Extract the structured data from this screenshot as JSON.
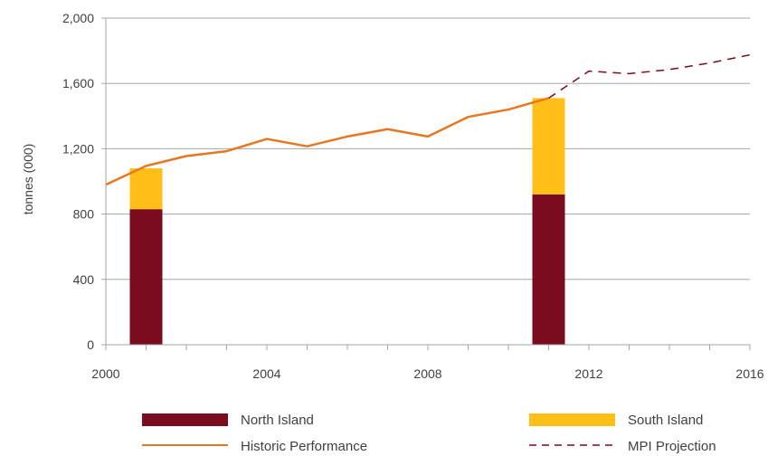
{
  "chart_data": {
    "type": "bar",
    "ylabel": "tonnes (000)",
    "xlabel": "",
    "title": "",
    "ylim": [
      0,
      2000
    ],
    "xlim": [
      2000,
      2016
    ],
    "y_ticks": [
      0,
      400,
      800,
      1200,
      1600,
      2000
    ],
    "y_tick_labels": [
      "0",
      "400",
      "800",
      "1,200",
      "1,600",
      "2,000"
    ],
    "x_ticks": [
      2000,
      2004,
      2008,
      2012,
      2016
    ],
    "x_tick_labels": [
      "2000",
      "2004",
      "2008",
      "2012",
      "2016"
    ],
    "grid": true,
    "legend_position": "bottom",
    "bars": {
      "years": [
        2001,
        2011
      ],
      "series": [
        {
          "name": "North Island",
          "color": "#7b0b1f",
          "values": [
            830,
            920
          ]
        },
        {
          "name": "South Island",
          "color": "#ffbf17",
          "values": [
            250,
            590
          ]
        }
      ]
    },
    "lines": [
      {
        "name": "Historic Performance",
        "color": "#e87722",
        "style": "solid",
        "x": [
          2000,
          2001,
          2002,
          2003,
          2004,
          2005,
          2006,
          2007,
          2008,
          2009,
          2010,
          2011
        ],
        "y": [
          980,
          1095,
          1155,
          1185,
          1260,
          1215,
          1275,
          1320,
          1275,
          1395,
          1440,
          1510
        ]
      },
      {
        "name": "MPI Projection",
        "color": "#7b0b1f",
        "style": "dashed",
        "x": [
          2011,
          2012,
          2013,
          2014,
          2015,
          2016
        ],
        "y": [
          1510,
          1675,
          1660,
          1685,
          1725,
          1775
        ]
      }
    ]
  }
}
